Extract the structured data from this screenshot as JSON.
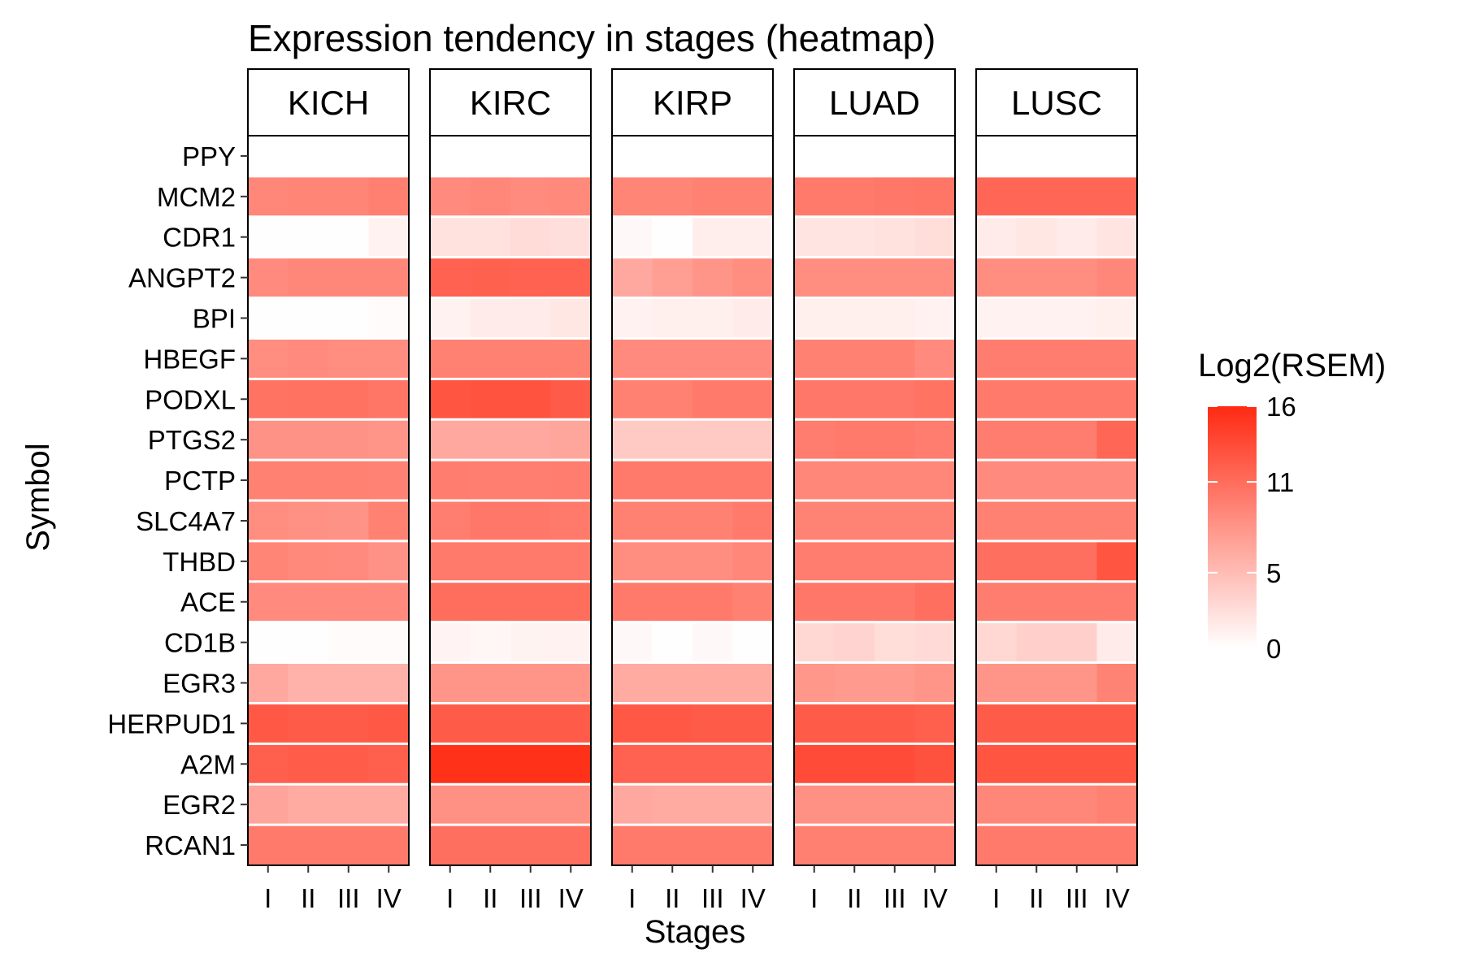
{
  "chart_data": {
    "type": "heatmap",
    "title": "Expression tendency in stages (heatmap)",
    "xlabel": "Stages",
    "ylabel": "Symbol",
    "legend": {
      "title": "Log2(RSEM)",
      "position": "right",
      "ticks": [
        0,
        5,
        11,
        16
      ]
    },
    "color_scale": {
      "low": "#ffffff",
      "high": "#ff2a12",
      "min": 0,
      "max": 16
    },
    "facets": [
      "KICH",
      "KIRC",
      "KIRP",
      "LUAD",
      "LUSC"
    ],
    "stages": [
      "I",
      "II",
      "III",
      "IV"
    ],
    "genes": [
      "PPY",
      "MCM2",
      "CDR1",
      "ANGPT2",
      "BPI",
      "HBEGF",
      "PODXL",
      "PTGS2",
      "PCTP",
      "SLC4A7",
      "THBD",
      "ACE",
      "CD1B",
      "EGR3",
      "HERPUD1",
      "A2M",
      "EGR2",
      "RCAN1"
    ],
    "values": {
      "KICH": [
        [
          0,
          0,
          0,
          0
        ],
        [
          9.0,
          9.2,
          9.2,
          9.6
        ],
        [
          0.1,
          0.1,
          0.1,
          1.0
        ],
        [
          8.8,
          9.0,
          9.0,
          9.0
        ],
        [
          0.1,
          0.1,
          0.1,
          0.3
        ],
        [
          8.6,
          8.8,
          8.6,
          8.6
        ],
        [
          10.5,
          10.6,
          10.6,
          10.3
        ],
        [
          8.2,
          8.2,
          8.2,
          8.0
        ],
        [
          9.5,
          9.5,
          9.5,
          9.4
        ],
        [
          8.5,
          8.3,
          8.2,
          9.5
        ],
        [
          9.2,
          8.9,
          8.8,
          8.2
        ],
        [
          8.8,
          8.8,
          8.8,
          8.8
        ],
        [
          0.1,
          0.1,
          0.3,
          0.3
        ],
        [
          6.5,
          5.8,
          5.8,
          5.8
        ],
        [
          12.5,
          12.3,
          12.3,
          12.5
        ],
        [
          12.0,
          12.2,
          12.2,
          12.0
        ],
        [
          6.8,
          6.3,
          6.3,
          6.3
        ],
        [
          10.0,
          10.0,
          10.0,
          10.0
        ]
      ],
      "KIRC": [
        [
          0,
          0,
          0,
          0
        ],
        [
          8.8,
          9.0,
          8.7,
          8.9
        ],
        [
          2.2,
          2.2,
          2.6,
          2.4
        ],
        [
          11.8,
          11.9,
          11.8,
          11.8
        ],
        [
          1.0,
          1.4,
          1.5,
          1.8
        ],
        [
          9.5,
          9.5,
          9.5,
          9.5
        ],
        [
          12.8,
          12.9,
          12.9,
          12.3
        ],
        [
          6.5,
          6.5,
          6.5,
          6.7
        ],
        [
          9.8,
          9.7,
          9.7,
          9.8
        ],
        [
          9.7,
          10.2,
          10.2,
          10.0
        ],
        [
          10.0,
          10.0,
          10.0,
          10.0
        ],
        [
          11.0,
          11.0,
          11.0,
          11.0
        ],
        [
          0.8,
          0.6,
          0.9,
          1.0
        ],
        [
          8.0,
          8.0,
          8.0,
          8.0
        ],
        [
          12.3,
          12.3,
          12.3,
          12.3
        ],
        [
          15.5,
          15.5,
          15.5,
          15.5
        ],
        [
          8.3,
          8.3,
          8.3,
          8.3
        ],
        [
          10.8,
          10.8,
          10.8,
          10.8
        ]
      ],
      "KIRP": [
        [
          0,
          0,
          0,
          0
        ],
        [
          9.2,
          9.2,
          9.5,
          9.5
        ],
        [
          0.5,
          0.1,
          1.3,
          1.3
        ],
        [
          6.5,
          7.2,
          8.0,
          8.5
        ],
        [
          1.0,
          1.2,
          1.2,
          1.4
        ],
        [
          8.8,
          8.8,
          8.8,
          8.8
        ],
        [
          9.5,
          9.5,
          10.0,
          10.0
        ],
        [
          4.0,
          4.0,
          4.0,
          4.0
        ],
        [
          10.0,
          10.0,
          10.0,
          10.0
        ],
        [
          9.5,
          9.5,
          9.5,
          10.0
        ],
        [
          8.5,
          8.5,
          8.5,
          9.0
        ],
        [
          10.0,
          10.0,
          10.0,
          9.5
        ],
        [
          0.5,
          0.1,
          0.5,
          0.1
        ],
        [
          6.3,
          6.3,
          6.3,
          6.3
        ],
        [
          12.5,
          12.5,
          12.3,
          12.3
        ],
        [
          11.8,
          11.8,
          11.8,
          11.8
        ],
        [
          6.5,
          6.3,
          6.3,
          6.3
        ],
        [
          10.0,
          10.0,
          10.0,
          10.0
        ]
      ],
      "LUAD": [
        [
          0,
          0,
          0,
          0
        ],
        [
          10.0,
          10.0,
          10.2,
          10.3
        ],
        [
          2.0,
          2.0,
          2.2,
          2.5
        ],
        [
          8.5,
          8.5,
          8.5,
          8.5
        ],
        [
          1.2,
          1.2,
          1.2,
          1.0
        ],
        [
          9.5,
          9.5,
          9.5,
          8.8
        ],
        [
          10.2,
          10.2,
          10.2,
          10.5
        ],
        [
          9.8,
          10.0,
          10.0,
          9.8
        ],
        [
          9.0,
          9.0,
          9.0,
          9.0
        ],
        [
          9.3,
          9.3,
          9.3,
          9.3
        ],
        [
          9.8,
          9.8,
          9.8,
          9.8
        ],
        [
          10.2,
          10.2,
          10.2,
          10.8
        ],
        [
          3.0,
          3.2,
          2.5,
          2.8
        ],
        [
          7.8,
          7.6,
          7.6,
          8.0
        ],
        [
          12.3,
          12.3,
          12.3,
          12.0
        ],
        [
          13.5,
          13.5,
          13.5,
          13.0
        ],
        [
          8.3,
          8.3,
          8.3,
          8.3
        ],
        [
          9.6,
          9.6,
          9.6,
          9.6
        ]
      ],
      "LUSC": [
        [
          0,
          0,
          0,
          0
        ],
        [
          11.5,
          11.5,
          11.5,
          11.5
        ],
        [
          1.5,
          1.8,
          1.5,
          2.0
        ],
        [
          8.5,
          8.5,
          8.5,
          9.0
        ],
        [
          1.0,
          1.0,
          1.0,
          1.2
        ],
        [
          9.8,
          9.8,
          9.8,
          9.8
        ],
        [
          10.0,
          10.0,
          10.0,
          10.0
        ],
        [
          9.8,
          9.8,
          9.8,
          11.5
        ],
        [
          8.8,
          8.8,
          8.8,
          8.8
        ],
        [
          9.5,
          9.5,
          9.5,
          9.5
        ],
        [
          10.8,
          10.8,
          10.8,
          12.8
        ],
        [
          9.8,
          9.8,
          9.8,
          9.8
        ],
        [
          3.0,
          3.5,
          3.5,
          1.5
        ],
        [
          8.0,
          8.0,
          8.0,
          9.3
        ],
        [
          12.3,
          12.3,
          12.3,
          12.3
        ],
        [
          12.8,
          12.8,
          12.8,
          12.8
        ],
        [
          9.0,
          9.0,
          9.0,
          9.5
        ],
        [
          10.0,
          10.0,
          10.0,
          10.0
        ]
      ]
    }
  }
}
